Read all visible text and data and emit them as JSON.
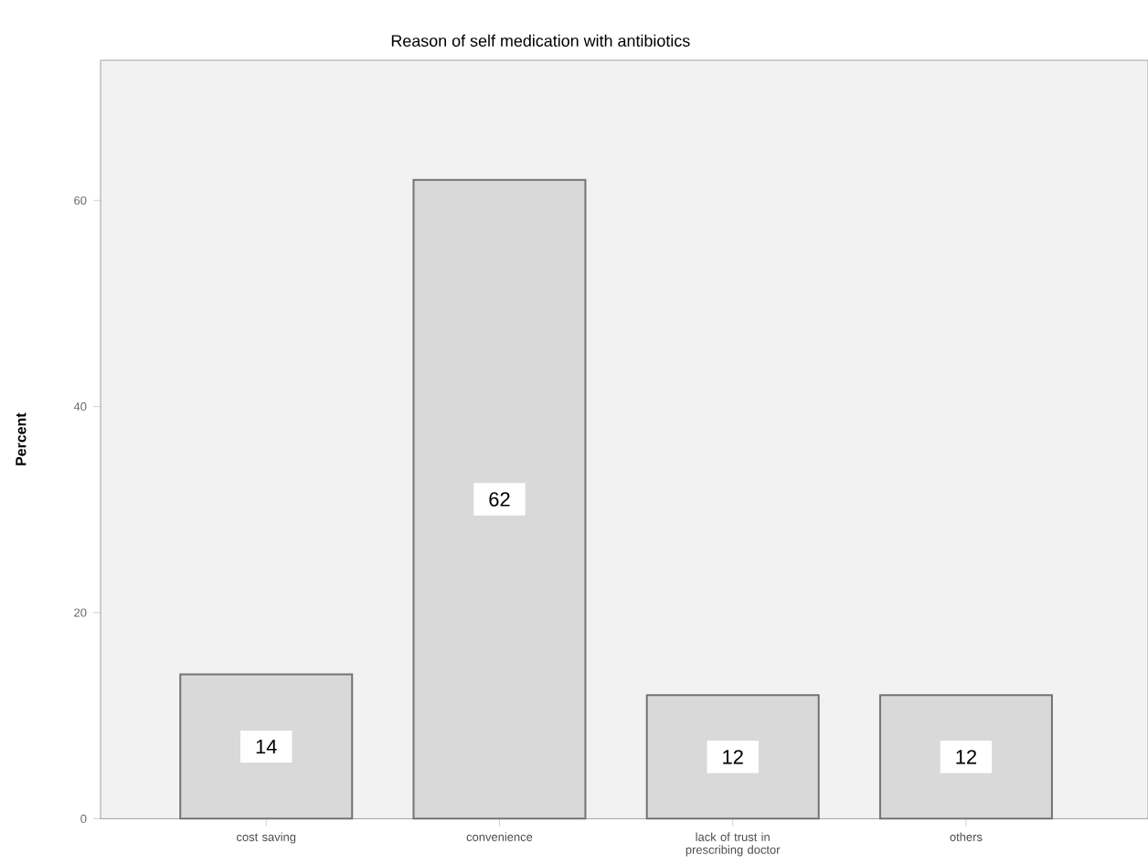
{
  "chart_data": {
    "type": "bar",
    "title": "Reason of self medication with antibiotics",
    "ylabel": "Percent",
    "categories": [
      "cost saving",
      "convenience",
      "lack of trust in prescribing doctor",
      "others"
    ],
    "values": [
      14,
      62,
      12,
      12
    ],
    "color": "#d9d9d9",
    "ylim": [
      0,
      73.6
    ],
    "yticks": [
      0,
      20,
      40,
      60
    ],
    "data_labels": true
  }
}
